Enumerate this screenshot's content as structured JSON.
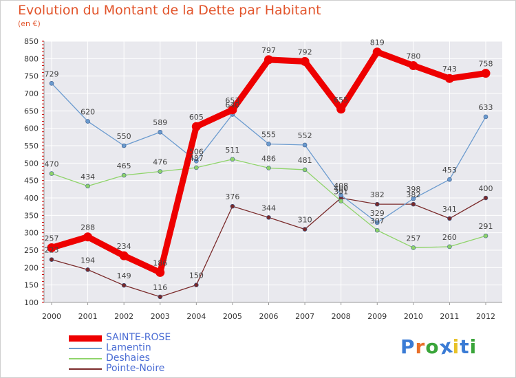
{
  "title": "Evolution du Montant de la Dette par Habitant",
  "unit": "(en €)",
  "brand": "Proxiti",
  "brand_colors": [
    "#3a7bd5",
    "#e8702a",
    "#3aa53a",
    "#3a7bd5",
    "#e8c22a",
    "#3a7bd5",
    "#3aa53a"
  ],
  "chart_data": {
    "type": "line",
    "x": [
      "2000",
      "2001",
      "2002",
      "2003",
      "2004",
      "2005",
      "2006",
      "2007",
      "2008",
      "2009",
      "2010",
      "2011",
      "2012"
    ],
    "ylim": [
      100,
      850
    ],
    "yticks": [
      100,
      150,
      200,
      250,
      300,
      350,
      400,
      450,
      500,
      550,
      600,
      650,
      700,
      750,
      800,
      850
    ],
    "grid": true,
    "legend_position": "bottom-left",
    "series": [
      {
        "name": "SAINTE-ROSE",
        "color": "#ee0000",
        "values": [
          257,
          288,
          234,
          186,
          605,
          653,
          797,
          792,
          655,
          819,
          780,
          743,
          758
        ]
      },
      {
        "name": "Lamentin",
        "color": "#6b9bcf",
        "values": [
          729,
          620,
          550,
          589,
          506,
          640,
          555,
          552,
          408,
          329,
          398,
          453,
          633
        ]
      },
      {
        "name": "Deshaies",
        "color": "#8fd46a",
        "values": [
          470,
          434,
          465,
          476,
          487,
          511,
          486,
          481,
          391,
          307,
          257,
          260,
          291
        ]
      },
      {
        "name": "Pointe-Noire",
        "color": "#7a2a2a",
        "values": [
          223,
          194,
          149,
          116,
          150,
          376,
          344,
          310,
          400,
          382,
          382,
          341,
          400
        ]
      }
    ]
  }
}
